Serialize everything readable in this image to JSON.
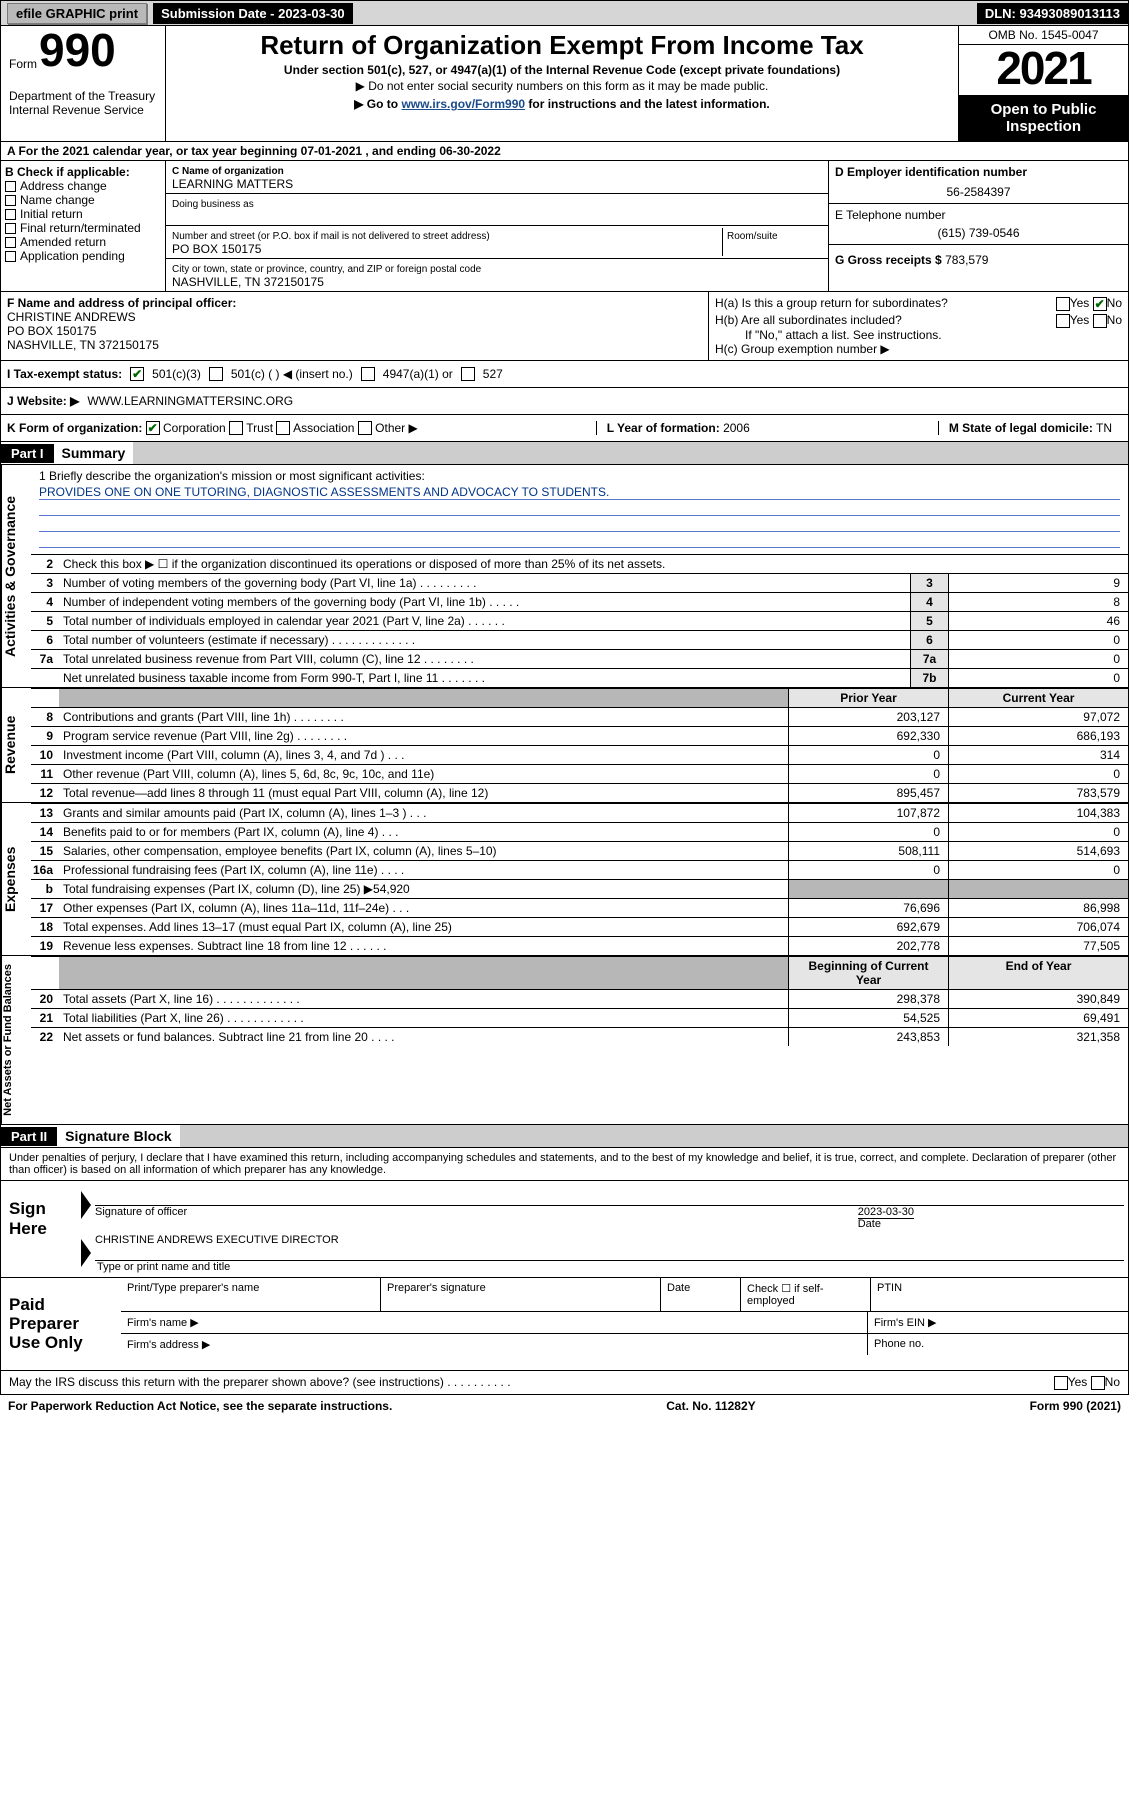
{
  "topbar": {
    "efile": "efile GRAPHIC print",
    "submission": "Submission Date - 2023-03-30",
    "dln": "DLN: 93493089013113"
  },
  "header": {
    "form_label": "Form",
    "form_number": "990",
    "title": "Return of Organization Exempt From Income Tax",
    "subtitle": "Under section 501(c), 527, or 4947(a)(1) of the Internal Revenue Code (except private foundations)",
    "note1": "▶ Do not enter social security numbers on this form as it may be made public.",
    "note2_pre": "▶ Go to ",
    "note2_link": "www.irs.gov/Form990",
    "note2_post": " for instructions and the latest information.",
    "dept": "Department of the Treasury",
    "irs": "Internal Revenue Service",
    "omb": "OMB No. 1545-0047",
    "year": "2021",
    "open": "Open to Public Inspection"
  },
  "row_a": "A For the 2021 calendar year, or tax year beginning 07-01-2021   , and ending 06-30-2022",
  "col_b": {
    "title": "B Check if applicable:",
    "opts": [
      "Address change",
      "Name change",
      "Initial return",
      "Final return/terminated",
      "Amended return",
      "Application pending"
    ]
  },
  "col_c": {
    "name_label": "C Name of organization",
    "name": "LEARNING MATTERS",
    "dba_label": "Doing business as",
    "addr_label": "Number and street (or P.O. box if mail is not delivered to street address)",
    "room_label": "Room/suite",
    "addr": "PO BOX 150175",
    "city_label": "City or town, state or province, country, and ZIP or foreign postal code",
    "city": "NASHVILLE, TN  372150175"
  },
  "col_right": {
    "ein_label": "D Employer identification number",
    "ein": "56-2584397",
    "phone_label": "E Telephone number",
    "phone": "(615) 739-0546",
    "gross_label": "G Gross receipts $",
    "gross": "783,579"
  },
  "officer": {
    "label": "F Name and address of principal officer:",
    "name": "CHRISTINE ANDREWS",
    "addr1": "PO BOX 150175",
    "addr2": "NASHVILLE, TN  372150175",
    "ha": "H(a)  Is this a group return for subordinates?",
    "hb": "H(b)  Are all subordinates included?",
    "hb_note": "If \"No,\" attach a list. See instructions.",
    "hc": "H(c)  Group exemption number ▶"
  },
  "status": {
    "label": "I   Tax-exempt status:",
    "o1": "501(c)(3)",
    "o2": "501(c) (  ) ◀ (insert no.)",
    "o3": "4947(a)(1) or",
    "o4": "527"
  },
  "website": {
    "label": "J   Website: ▶",
    "value": "WWW.LEARNINGMATTERSINC.ORG"
  },
  "korg": {
    "label": "K Form of organization:",
    "opts": [
      "Corporation",
      "Trust",
      "Association",
      "Other ▶"
    ],
    "year_label": "L Year of formation:",
    "year": "2006",
    "state_label": "M State of legal domicile:",
    "state": "TN"
  },
  "part1_title": "Part I",
  "part1_sub": "Summary",
  "mission": {
    "label": "1  Briefly describe the organization's mission or most significant activities:",
    "text": "PROVIDES ONE ON ONE TUTORING, DIAGNOSTIC ASSESSMENTS AND ADVOCACY TO STUDENTS."
  },
  "gov_rows": [
    {
      "n": "2",
      "label": "Check this box ▶ ☐  if the organization discontinued its operations or disposed of more than 25% of its net assets.",
      "box": "",
      "val": ""
    },
    {
      "n": "3",
      "label": "Number of voting members of the governing body (Part VI, line 1a)   .    .    .    .    .    .    .    .    .",
      "box": "3",
      "val": "9"
    },
    {
      "n": "4",
      "label": "Number of independent voting members of the governing body (Part VI, line 1b)   .    .    .    .    .",
      "box": "4",
      "val": "8"
    },
    {
      "n": "5",
      "label": "Total number of individuals employed in calendar year 2021 (Part V, line 2a)   .    .    .    .    .    .",
      "box": "5",
      "val": "46"
    },
    {
      "n": "6",
      "label": "Total number of volunteers (estimate if necessary)   .    .    .    .    .    .    .    .    .    .    .    .    .",
      "box": "6",
      "val": "0"
    },
    {
      "n": "7a",
      "label": "Total unrelated business revenue from Part VIII, column (C), line 12   .    .    .    .    .    .    .    .",
      "box": "7a",
      "val": "0"
    },
    {
      "n": "",
      "label": "Net unrelated business taxable income from Form 990-T, Part I, line 11   .    .    .    .    .    .    .",
      "box": "7b",
      "val": "0"
    }
  ],
  "rev_header": {
    "prior": "Prior Year",
    "current": "Current Year"
  },
  "rev_rows": [
    {
      "n": "8",
      "label": "Contributions and grants (Part VIII, line 1h)   .    .    .    .    .    .    .    .",
      "p": "203,127",
      "c": "97,072"
    },
    {
      "n": "9",
      "label": "Program service revenue (Part VIII, line 2g)   .    .    .    .    .    .    .    .",
      "p": "692,330",
      "c": "686,193"
    },
    {
      "n": "10",
      "label": "Investment income (Part VIII, column (A), lines 3, 4, and 7d )   .    .    .",
      "p": "0",
      "c": "314"
    },
    {
      "n": "11",
      "label": "Other revenue (Part VIII, column (A), lines 5, 6d, 8c, 9c, 10c, and 11e)",
      "p": "0",
      "c": "0"
    },
    {
      "n": "12",
      "label": "Total revenue—add lines 8 through 11 (must equal Part VIII, column (A), line 12)",
      "p": "895,457",
      "c": "783,579"
    }
  ],
  "exp_rows": [
    {
      "n": "13",
      "label": "Grants and similar amounts paid (Part IX, column (A), lines 1–3 )   .    .    .",
      "p": "107,872",
      "c": "104,383"
    },
    {
      "n": "14",
      "label": "Benefits paid to or for members (Part IX, column (A), line 4)   .    .    .",
      "p": "0",
      "c": "0"
    },
    {
      "n": "15",
      "label": "Salaries, other compensation, employee benefits (Part IX, column (A), lines 5–10)",
      "p": "508,111",
      "c": "514,693"
    },
    {
      "n": "16a",
      "label": "Professional fundraising fees (Part IX, column (A), line 11e)   .    .    .    .",
      "p": "0",
      "c": "0"
    },
    {
      "n": "b",
      "label": "Total fundraising expenses (Part IX, column (D), line 25) ▶54,920",
      "p": "",
      "c": "",
      "gray": true
    },
    {
      "n": "17",
      "label": "Other expenses (Part IX, column (A), lines 11a–11d, 11f–24e)   .    .    .",
      "p": "76,696",
      "c": "86,998"
    },
    {
      "n": "18",
      "label": "Total expenses. Add lines 13–17 (must equal Part IX, column (A), line 25)",
      "p": "692,679",
      "c": "706,074"
    },
    {
      "n": "19",
      "label": "Revenue less expenses. Subtract line 18 from line 12   .    .    .    .    .    .",
      "p": "202,778",
      "c": "77,505"
    }
  ],
  "net_header": {
    "prior": "Beginning of Current Year",
    "current": "End of Year"
  },
  "net_rows": [
    {
      "n": "20",
      "label": "Total assets (Part X, line 16)   .    .    .    .    .    .    .    .    .    .    .    .    .",
      "p": "298,378",
      "c": "390,849"
    },
    {
      "n": "21",
      "label": "Total liabilities (Part X, line 26)   .    .    .    .    .    .    .    .    .    .    .    .",
      "p": "54,525",
      "c": "69,491"
    },
    {
      "n": "22",
      "label": "Net assets or fund balances. Subtract line 21 from line 20   .    .    .    .",
      "p": "243,853",
      "c": "321,358"
    }
  ],
  "side_labels": {
    "gov": "Activities & Governance",
    "rev": "Revenue",
    "exp": "Expenses",
    "net": "Net Assets or Fund Balances"
  },
  "part2_title": "Part II",
  "part2_sub": "Signature Block",
  "declaration": "Under penalties of perjury, I declare that I have examined this return, including accompanying schedules and statements, and to the best of my knowledge and belief, it is true, correct, and complete. Declaration of preparer (other than officer) is based on all information of which preparer has any knowledge.",
  "sign": {
    "label": "Sign Here",
    "sig_officer": "Signature of officer",
    "date": "Date",
    "date_val": "2023-03-30",
    "typed": "CHRISTINE ANDREWS  EXECUTIVE DIRECTOR",
    "typed_label": "Type or print name and title"
  },
  "paid": {
    "label": "Paid Preparer Use Only",
    "h1": "Print/Type preparer's name",
    "h2": "Preparer's signature",
    "h3": "Date",
    "h4": "Check ☐ if self-employed",
    "h5": "PTIN",
    "firm_name": "Firm's name    ▶",
    "firm_ein": "Firm's EIN ▶",
    "firm_addr": "Firm's address ▶",
    "phone": "Phone no."
  },
  "may": {
    "text": "May the IRS discuss this return with the preparer shown above? (see instructions)   .    .    .    .    .    .    .    .    .    .",
    "yes": "Yes",
    "no": "No"
  },
  "footer": {
    "left": "For Paperwork Reduction Act Notice, see the separate instructions.",
    "mid": "Cat. No. 11282Y",
    "right": "Form 990 (2021)"
  },
  "colors": {
    "header_black": "#000000",
    "link_blue": "#2258a5",
    "gray_bg": "#cdcdcd",
    "check_green": "#006600"
  }
}
